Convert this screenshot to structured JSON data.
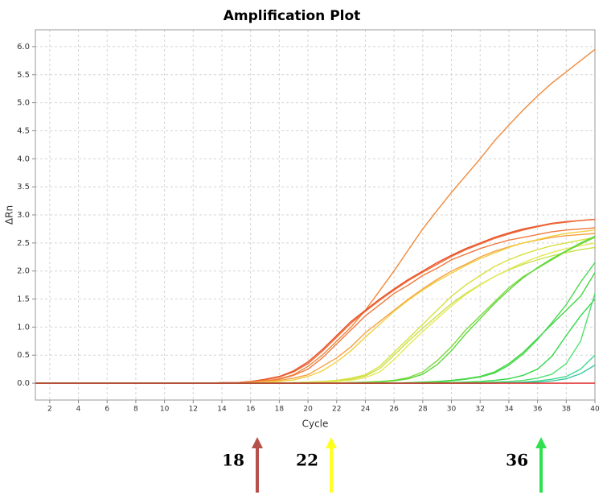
{
  "chart_data": {
    "type": "line",
    "title": "Amplification Plot",
    "x_label": "Cycle",
    "y_label": "ΔRn",
    "x": [
      1,
      2,
      3,
      4,
      5,
      6,
      7,
      8,
      9,
      10,
      11,
      12,
      13,
      14,
      15,
      16,
      17,
      18,
      19,
      20,
      21,
      22,
      23,
      24,
      25,
      26,
      27,
      28,
      29,
      30,
      31,
      32,
      33,
      34,
      35,
      36,
      37,
      38,
      39,
      40
    ],
    "xlim": [
      1,
      40
    ],
    "xticks": [
      2,
      4,
      6,
      8,
      10,
      12,
      14,
      16,
      18,
      20,
      22,
      24,
      26,
      28,
      30,
      32,
      34,
      36,
      38,
      40
    ],
    "ylim": [
      -0.3,
      6.3
    ],
    "yticks": [
      {
        "value": 0,
        "label": "0.0"
      },
      0.5,
      {
        "value": 1,
        "label": "1.0"
      },
      1.5,
      {
        "value": 2,
        "label": "2.0"
      },
      2.5,
      {
        "value": 3,
        "label": "3.0"
      },
      3.5,
      {
        "value": 4,
        "label": "4.0"
      },
      4.5,
      {
        "value": 5,
        "label": "5.0"
      },
      5.5,
      {
        "value": 6,
        "label": "6.0"
      }
    ],
    "grid": true,
    "series": [
      {
        "color": "#f08a3c",
        "values": [
          0,
          0,
          0,
          0,
          0,
          0,
          0,
          0,
          0,
          0,
          0,
          0,
          0,
          0,
          0.01,
          0.02,
          0.04,
          0.08,
          0.15,
          0.3,
          0.5,
          0.75,
          1.0,
          1.3,
          1.65,
          2.0,
          2.38,
          2.75,
          3.08,
          3.4,
          3.7,
          4.0,
          4.32,
          4.6,
          4.87,
          5.12,
          5.35,
          5.55,
          5.75,
          5.95
        ]
      },
      {
        "color": "#e8502a",
        "values": [
          0,
          0,
          0,
          0,
          0,
          0,
          0,
          0,
          0,
          0,
          0,
          0,
          0,
          0.01,
          0.01,
          0.03,
          0.07,
          0.12,
          0.22,
          0.38,
          0.6,
          0.85,
          1.1,
          1.3,
          1.5,
          1.68,
          1.85,
          2.0,
          2.15,
          2.28,
          2.4,
          2.5,
          2.6,
          2.68,
          2.75,
          2.8,
          2.85,
          2.88,
          2.9,
          2.92
        ]
      },
      {
        "color": "#ec6a35",
        "values": [
          0,
          0,
          0,
          0,
          0,
          0,
          0,
          0,
          0,
          0,
          0,
          0,
          0,
          0.01,
          0.01,
          0.03,
          0.06,
          0.11,
          0.2,
          0.35,
          0.57,
          0.82,
          1.07,
          1.28,
          1.48,
          1.66,
          1.83,
          1.98,
          2.12,
          2.26,
          2.38,
          2.48,
          2.58,
          2.66,
          2.73,
          2.79,
          2.84,
          2.87,
          2.9,
          2.92
        ]
      },
      {
        "color": "#f07a40",
        "values": [
          0,
          0,
          0,
          0,
          0,
          0,
          0,
          0,
          0,
          0,
          0,
          0,
          0,
          0,
          0.01,
          0.02,
          0.04,
          0.07,
          0.14,
          0.25,
          0.45,
          0.7,
          0.95,
          1.2,
          1.4,
          1.6,
          1.75,
          1.92,
          2.05,
          2.2,
          2.3,
          2.4,
          2.48,
          2.55,
          2.6,
          2.65,
          2.7,
          2.73,
          2.75,
          2.77
        ]
      },
      {
        "color": "#f5a040",
        "values": [
          0,
          0,
          0,
          0,
          0,
          0,
          0,
          0,
          0,
          0,
          0,
          0,
          0,
          0,
          0.01,
          0.01,
          0.03,
          0.05,
          0.09,
          0.15,
          0.3,
          0.45,
          0.65,
          0.9,
          1.1,
          1.3,
          1.5,
          1.68,
          1.85,
          2.0,
          2.12,
          2.25,
          2.35,
          2.43,
          2.5,
          2.55,
          2.6,
          2.63,
          2.65,
          2.67
        ]
      },
      {
        "color": "#f0d040",
        "values": [
          0,
          0,
          0,
          0,
          0,
          0,
          0,
          0,
          0,
          0,
          0,
          0,
          0,
          0,
          0,
          0.01,
          0.02,
          0.03,
          0.06,
          0.12,
          0.22,
          0.38,
          0.58,
          0.82,
          1.05,
          1.28,
          1.48,
          1.66,
          1.82,
          1.96,
          2.1,
          2.22,
          2.32,
          2.42,
          2.5,
          2.56,
          2.62,
          2.67,
          2.7,
          2.73
        ]
      },
      {
        "color": "#d8e040",
        "values": [
          0,
          0,
          0,
          0,
          0,
          0,
          0,
          0,
          0,
          0,
          0,
          0,
          0,
          0,
          0,
          0,
          0,
          0,
          0.01,
          0.02,
          0.03,
          0.05,
          0.09,
          0.15,
          0.3,
          0.55,
          0.8,
          1.05,
          1.3,
          1.55,
          1.75,
          1.92,
          2.08,
          2.2,
          2.3,
          2.38,
          2.45,
          2.5,
          2.55,
          2.6
        ]
      },
      {
        "color": "#c8e048",
        "values": [
          0,
          0,
          0,
          0,
          0,
          0,
          0,
          0,
          0,
          0,
          0,
          0,
          0,
          0,
          0,
          0,
          0,
          0,
          0.01,
          0.02,
          0.03,
          0.04,
          0.07,
          0.13,
          0.26,
          0.5,
          0.75,
          0.98,
          1.2,
          1.42,
          1.6,
          1.76,
          1.9,
          2.02,
          2.12,
          2.2,
          2.27,
          2.33,
          2.38,
          2.42
        ]
      },
      {
        "color": "#e6e855",
        "values": [
          0,
          0,
          0,
          0,
          0,
          0,
          0,
          0,
          0,
          0,
          0,
          0,
          0,
          0,
          0,
          0,
          0,
          0,
          0.01,
          0.01,
          0.02,
          0.03,
          0.05,
          0.1,
          0.2,
          0.42,
          0.68,
          0.92,
          1.15,
          1.38,
          1.58,
          1.75,
          1.9,
          2.03,
          2.15,
          2.25,
          2.33,
          2.4,
          2.45,
          2.5
        ]
      },
      {
        "color": "#7ad83a",
        "values": [
          0,
          0,
          0,
          0,
          0,
          0,
          0,
          0,
          0,
          0,
          0,
          0,
          0,
          0,
          0,
          0,
          0,
          0,
          0,
          0,
          0,
          0,
          0.01,
          0.02,
          0.03,
          0.05,
          0.1,
          0.2,
          0.4,
          0.65,
          0.95,
          1.2,
          1.45,
          1.7,
          1.9,
          2.05,
          2.2,
          2.35,
          2.48,
          2.6
        ]
      },
      {
        "color": "#5cd83a",
        "values": [
          0,
          0,
          0,
          0,
          0,
          0,
          0,
          0,
          0,
          0,
          0,
          0,
          0,
          0,
          0,
          0,
          0,
          0,
          0,
          0,
          0,
          0,
          0.01,
          0.01,
          0.02,
          0.04,
          0.08,
          0.16,
          0.33,
          0.58,
          0.88,
          1.15,
          1.42,
          1.66,
          1.88,
          2.06,
          2.22,
          2.36,
          2.5,
          2.62
        ]
      },
      {
        "color": "#40d840",
        "values": [
          0,
          0,
          0,
          0,
          0,
          0,
          0,
          0,
          0,
          0,
          0,
          0,
          0,
          0,
          0,
          0,
          0,
          0,
          0,
          0,
          0,
          0,
          0,
          0,
          0,
          0,
          0.01,
          0.02,
          0.03,
          0.05,
          0.08,
          0.12,
          0.2,
          0.35,
          0.55,
          0.8,
          1.05,
          1.3,
          1.55,
          1.97
        ]
      },
      {
        "color": "#4ad850",
        "values": [
          0,
          0,
          0,
          0,
          0,
          0,
          0,
          0,
          0,
          0,
          0,
          0,
          0,
          0,
          0,
          0,
          0,
          0,
          0,
          0,
          0,
          0,
          0,
          0,
          0,
          0,
          0.01,
          0.01,
          0.02,
          0.04,
          0.07,
          0.11,
          0.18,
          0.32,
          0.52,
          0.78,
          1.08,
          1.4,
          1.8,
          2.15
        ]
      },
      {
        "color": "#30d848",
        "values": [
          0,
          0,
          0,
          0,
          0,
          0,
          0,
          0,
          0,
          0,
          0,
          0,
          0,
          0,
          0,
          0,
          0,
          0,
          0,
          0,
          0,
          0,
          0,
          0,
          0,
          0,
          0,
          0,
          0.01,
          0.01,
          0.02,
          0.03,
          0.05,
          0.08,
          0.14,
          0.25,
          0.48,
          0.85,
          1.2,
          1.5
        ]
      },
      {
        "color": "#50e070",
        "values": [
          0,
          0,
          0,
          0,
          0,
          0,
          0,
          0,
          0,
          0,
          0,
          0,
          0,
          0,
          0,
          0,
          0,
          0,
          0,
          0,
          0,
          0,
          0,
          0,
          0,
          0,
          0,
          0,
          0,
          0,
          0.01,
          0.01,
          0.02,
          0.03,
          0.05,
          0.09,
          0.16,
          0.35,
          0.75,
          1.6
        ]
      },
      {
        "color": "#40d890",
        "values": [
          0,
          0,
          0,
          0,
          0,
          0,
          0,
          0,
          0,
          0,
          0,
          0,
          0,
          0,
          0,
          0,
          0,
          0,
          0,
          0,
          0,
          0,
          0,
          0,
          0,
          0,
          0,
          0,
          0,
          0,
          0,
          0,
          0.01,
          0.01,
          0.02,
          0.04,
          0.07,
          0.12,
          0.25,
          0.5
        ]
      },
      {
        "color": "#40c8a0",
        "values": [
          0,
          0,
          0,
          0,
          0,
          0,
          0,
          0,
          0,
          0,
          0,
          0,
          0,
          0,
          0,
          0,
          0,
          0,
          0,
          0,
          0,
          0,
          0,
          0,
          0,
          0,
          0,
          0,
          0,
          0,
          0,
          0,
          0,
          0.01,
          0.01,
          0.02,
          0.04,
          0.08,
          0.17,
          0.32
        ]
      },
      {
        "color": "#e02020",
        "values": [
          0,
          0,
          0,
          0,
          0,
          0,
          0,
          0,
          0,
          0,
          0,
          0,
          0,
          0,
          0,
          0,
          0,
          0,
          0,
          0,
          0,
          0,
          0,
          0,
          0,
          0,
          0,
          0,
          0,
          0,
          0,
          0,
          0,
          0,
          0,
          0,
          0,
          0,
          0,
          0
        ]
      }
    ],
    "annotations": [
      {
        "text": "18",
        "color": "#b5504a"
      },
      {
        "text": "22",
        "color": "#ffff20"
      },
      {
        "text": "36",
        "color": "#30e050"
      }
    ]
  }
}
